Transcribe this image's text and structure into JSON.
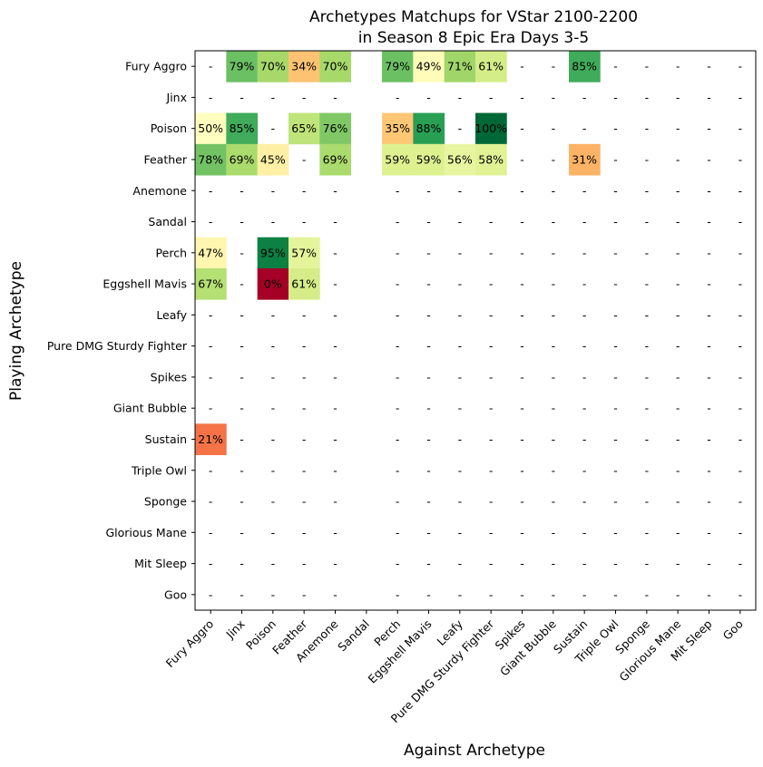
{
  "chart_data": {
    "type": "heatmap",
    "title": "Archetypes Matchups for VStar 2100-2200\nin Season 8 Epic Era Days 3-5",
    "title_lines": [
      "Archetypes Matchups for VStar 2100-2200",
      "in Season 8 Epic Era Days 3-5"
    ],
    "xlabel": "Against Archetype",
    "ylabel": "Playing Archetype",
    "colormap": "RdYlGn",
    "value_range": [
      0,
      100
    ],
    "missing_label": "-",
    "rows": [
      "Fury Aggro",
      "Jinx",
      "Poison",
      "Feather",
      "Anemone",
      "Sandal",
      "Perch",
      "Eggshell Mavis",
      "Leafy",
      "Pure DMG Sturdy Fighter",
      "Spikes",
      "Giant Bubble",
      "Sustain",
      "Triple Owl",
      "Sponge",
      "Glorious Mane",
      "Mit Sleep",
      "Goo"
    ],
    "columns": [
      "Fury Aggro",
      "Jinx",
      "Poison",
      "Feather",
      "Anemone",
      "Sandal",
      "Perch",
      "Eggshell Mavis",
      "Leafy",
      "Pure DMG Sturdy Fighter",
      "Spikes",
      "Giant Bubble",
      "Sustain",
      "Triple Owl",
      "Sponge",
      "Glorious Mane",
      "Mit Sleep",
      "Goo"
    ],
    "values": [
      [
        null,
        79,
        70,
        34,
        70,
        null,
        79,
        49,
        71,
        61,
        null,
        null,
        85,
        null,
        null,
        null,
        null,
        null
      ],
      [
        null,
        null,
        null,
        null,
        null,
        null,
        null,
        null,
        null,
        null,
        null,
        null,
        null,
        null,
        null,
        null,
        null,
        null
      ],
      [
        50,
        85,
        null,
        65,
        76,
        null,
        35,
        88,
        null,
        100,
        null,
        null,
        null,
        null,
        null,
        null,
        null,
        null
      ],
      [
        78,
        69,
        45,
        null,
        69,
        null,
        59,
        59,
        56,
        58,
        null,
        null,
        31,
        null,
        null,
        null,
        null,
        null
      ],
      [
        null,
        null,
        null,
        null,
        null,
        null,
        null,
        null,
        null,
        null,
        null,
        null,
        null,
        null,
        null,
        null,
        null,
        null
      ],
      [
        null,
        null,
        null,
        null,
        null,
        null,
        null,
        null,
        null,
        null,
        null,
        null,
        null,
        null,
        null,
        null,
        null,
        null
      ],
      [
        47,
        null,
        95,
        57,
        null,
        null,
        null,
        null,
        null,
        null,
        null,
        null,
        null,
        null,
        null,
        null,
        null,
        null
      ],
      [
        67,
        null,
        0,
        61,
        null,
        null,
        null,
        null,
        null,
        null,
        null,
        null,
        null,
        null,
        null,
        null,
        null,
        null
      ],
      [
        null,
        null,
        null,
        null,
        null,
        null,
        null,
        null,
        null,
        null,
        null,
        null,
        null,
        null,
        null,
        null,
        null,
        null
      ],
      [
        null,
        null,
        null,
        null,
        null,
        null,
        null,
        null,
        null,
        null,
        null,
        null,
        null,
        null,
        null,
        null,
        null,
        null
      ],
      [
        null,
        null,
        null,
        null,
        null,
        null,
        null,
        null,
        null,
        null,
        null,
        null,
        null,
        null,
        null,
        null,
        null,
        null
      ],
      [
        null,
        null,
        null,
        null,
        null,
        null,
        null,
        null,
        null,
        null,
        null,
        null,
        null,
        null,
        null,
        null,
        null,
        null
      ],
      [
        21,
        null,
        null,
        null,
        null,
        null,
        null,
        null,
        null,
        null,
        null,
        null,
        null,
        null,
        null,
        null,
        null,
        null
      ],
      [
        null,
        null,
        null,
        null,
        null,
        null,
        null,
        null,
        null,
        null,
        null,
        null,
        null,
        null,
        null,
        null,
        null,
        null
      ],
      [
        null,
        null,
        null,
        null,
        null,
        null,
        null,
        null,
        null,
        null,
        null,
        null,
        null,
        null,
        null,
        null,
        null,
        null
      ],
      [
        null,
        null,
        null,
        null,
        null,
        null,
        null,
        null,
        null,
        null,
        null,
        null,
        null,
        null,
        null,
        null,
        null,
        null
      ],
      [
        null,
        null,
        null,
        null,
        null,
        null,
        null,
        null,
        null,
        null,
        null,
        null,
        null,
        null,
        null,
        null,
        null,
        null
      ],
      [
        null,
        null,
        null,
        null,
        null,
        null,
        null,
        null,
        null,
        null,
        null,
        null,
        null,
        null,
        null,
        null,
        null,
        null
      ]
    ]
  }
}
